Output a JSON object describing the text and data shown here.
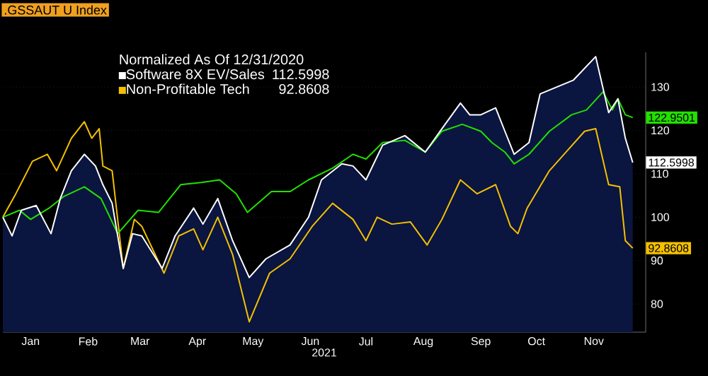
{
  "chart_data": {
    "type": "line",
    "title": ".GSSAUT U Index",
    "legend_title": "Normalized As Of 12/31/2020",
    "xlabel": "2021",
    "xlim": [
      "2020-12-31",
      "2021-12-13"
    ],
    "ylim": [
      73.5,
      138
    ],
    "xticks": [
      {
        "value": "2021-01-15",
        "label": "Jan"
      },
      {
        "value": "2021-02-15",
        "label": "Feb"
      },
      {
        "value": "2021-03-15",
        "label": "Mar"
      },
      {
        "value": "2021-04-15",
        "label": "Apr"
      },
      {
        "value": "2021-05-15",
        "label": "May"
      },
      {
        "value": "2021-06-15",
        "label": "Jun"
      },
      {
        "value": "2021-07-15",
        "label": "Jul"
      },
      {
        "value": "2021-08-15",
        "label": "Aug"
      },
      {
        "value": "2021-09-15",
        "label": "Sep"
      },
      {
        "value": "2021-10-15",
        "label": "Oct"
      },
      {
        "value": "2021-11-15",
        "label": "Nov"
      }
    ],
    "yticks": [
      80,
      90,
      100,
      110,
      120,
      130
    ],
    "grid": "y",
    "legend": "top left",
    "series": [
      {
        "name": "Software 8X EV/Sales",
        "type": "area",
        "color": "#ffffff",
        "x": [
          "2020-12-31",
          "2021-01-05",
          "2021-01-10",
          "2021-01-18",
          "2021-01-26",
          "2021-01-31",
          "2021-02-06",
          "2021-02-13",
          "2021-02-19",
          "2021-02-23",
          "2021-02-28",
          "2021-03-06",
          "2021-03-11",
          "2021-03-16",
          "2021-03-27",
          "2021-04-03",
          "2021-04-13",
          "2021-04-18",
          "2021-04-26",
          "2021-05-04",
          "2021-05-13",
          "2021-05-22",
          "2021-06-04",
          "2021-06-14",
          "2021-06-21",
          "2021-07-02",
          "2021-07-08",
          "2021-07-15",
          "2021-07-24",
          "2021-08-05",
          "2021-08-16",
          "2021-08-25",
          "2021-09-04",
          "2021-09-09",
          "2021-09-15",
          "2021-09-23",
          "2021-09-28",
          "2021-10-03",
          "2021-10-11",
          "2021-10-17",
          "2021-10-26",
          "2021-11-04",
          "2021-11-16",
          "2021-11-23",
          "2021-11-28",
          "2021-12-02",
          "2021-12-06"
        ],
        "values": [
          100,
          95.7,
          101.6,
          102.7,
          96.2,
          104.3,
          110.7,
          114.5,
          111.8,
          107.5,
          103.2,
          88.2,
          96.2,
          95.7,
          88.2,
          95.7,
          102.1,
          98.4,
          104.3,
          94.6,
          86.1,
          90.4,
          93.6,
          100,
          108.6,
          112.3,
          111.8,
          108.6,
          116.6,
          118.8,
          115,
          120.4,
          126.3,
          123.6,
          123.6,
          125.2,
          119.8,
          114.5,
          117.2,
          128.4,
          130,
          131.6,
          137,
          124.1,
          127.3,
          118.2,
          112.5998
        ]
      },
      {
        "name": "Non-Profitable Tech",
        "color": "#f5c000",
        "x": [
          "2020-12-31",
          "2021-01-07",
          "2021-01-16",
          "2021-01-24",
          "2021-01-29",
          "2021-02-06",
          "2021-02-13",
          "2021-02-17",
          "2021-02-21",
          "2021-02-23",
          "2021-02-28",
          "2021-03-06",
          "2021-03-12",
          "2021-03-16",
          "2021-03-28",
          "2021-04-05",
          "2021-04-13",
          "2021-04-18",
          "2021-04-26",
          "2021-05-04",
          "2021-05-13",
          "2021-05-24",
          "2021-06-04",
          "2021-06-16",
          "2021-06-27",
          "2021-07-08",
          "2021-07-15",
          "2021-07-21",
          "2021-07-29",
          "2021-08-08",
          "2021-08-17",
          "2021-08-25",
          "2021-09-04",
          "2021-09-13",
          "2021-09-23",
          "2021-10-01",
          "2021-10-05",
          "2021-10-10",
          "2021-10-22",
          "2021-10-31",
          "2021-11-10",
          "2021-11-16",
          "2021-11-23",
          "2021-11-29",
          "2021-12-02",
          "2021-12-06"
        ],
        "values": [
          100,
          105.4,
          112.9,
          114.5,
          110.7,
          118.2,
          122,
          118.2,
          120.4,
          111.8,
          110.7,
          88.2,
          99.5,
          97.9,
          87.1,
          95.7,
          97.3,
          92.5,
          100,
          91.4,
          75.9,
          87.1,
          90.4,
          97.9,
          103.2,
          99.5,
          94.6,
          100,
          98.4,
          98.9,
          93.6,
          99.5,
          108.6,
          105.4,
          107.5,
          97.9,
          96.2,
          102.1,
          110.7,
          115,
          119.8,
          120.4,
          107.5,
          107,
          94.6,
          92.8608
        ]
      },
      {
        "color": "#22e000",
        "x": [
          "2020-12-31",
          "2021-01-09",
          "2021-01-15",
          "2021-01-25",
          "2021-02-02",
          "2021-02-13",
          "2021-02-22",
          "2021-03-03",
          "2021-03-14",
          "2021-03-25",
          "2021-04-06",
          "2021-04-17",
          "2021-04-27",
          "2021-05-06",
          "2021-05-12",
          "2021-05-25",
          "2021-06-04",
          "2021-06-14",
          "2021-06-27",
          "2021-07-08",
          "2021-07-15",
          "2021-07-24",
          "2021-08-05",
          "2021-08-16",
          "2021-08-25",
          "2021-09-05",
          "2021-09-15",
          "2021-09-21",
          "2021-09-28",
          "2021-10-03",
          "2021-10-11",
          "2021-10-22",
          "2021-11-03",
          "2021-11-11",
          "2021-11-20",
          "2021-11-25",
          "2021-11-28",
          "2021-12-02",
          "2021-12-06"
        ],
        "values": [
          100,
          101.6,
          99.5,
          102.1,
          104.8,
          107,
          104.3,
          96.2,
          101.6,
          101.1,
          107.5,
          108,
          108.6,
          105.4,
          101.1,
          105.9,
          105.9,
          108.6,
          111.3,
          114.5,
          113.4,
          117.2,
          117.7,
          115,
          119.8,
          121.4,
          119.8,
          117.2,
          115,
          112.3,
          114.5,
          119.8,
          123.6,
          124.7,
          128.9,
          124.7,
          127.3,
          123.6,
          122.9501
        ]
      }
    ],
    "annotations": [
      {
        "text": "112.5998",
        "x": "2021-12-06",
        "y": 112.5998
      },
      {
        "text": "92.8608",
        "x": "2021-12-06",
        "y": 92.8608
      },
      {
        "text": "122.9501",
        "x": "2021-12-06",
        "y": 122.9501
      }
    ]
  }
}
